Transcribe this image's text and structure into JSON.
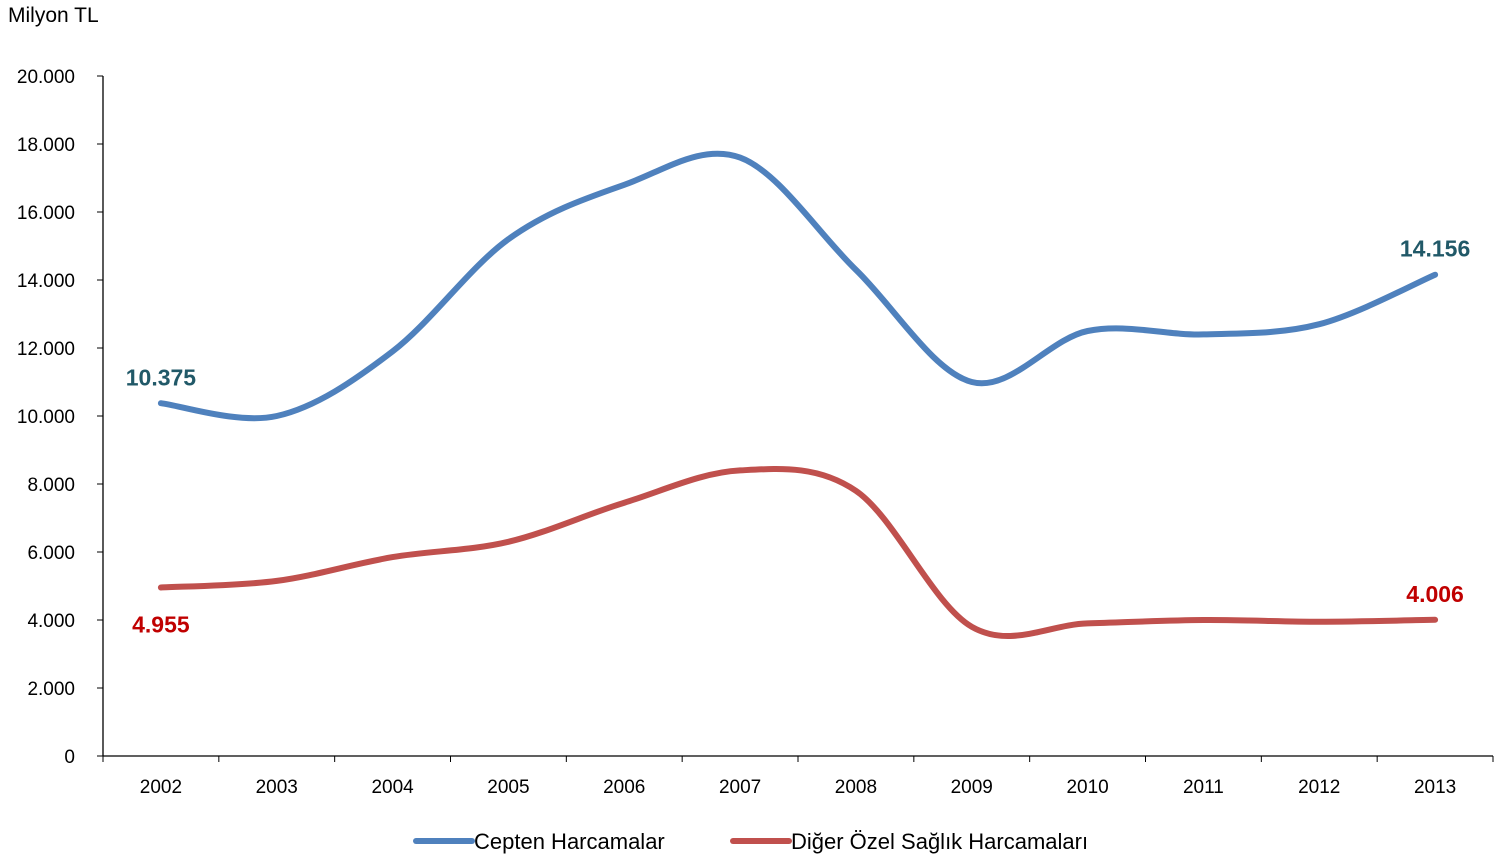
{
  "chart_data": {
    "type": "line",
    "title": "",
    "unit_label": "Milyon TL",
    "xlabel": "",
    "ylabel": "",
    "categories": [
      "2002",
      "2003",
      "2004",
      "2005",
      "2006",
      "2007",
      "2008",
      "2009",
      "2010",
      "2011",
      "2012",
      "2013"
    ],
    "ylim": [
      0,
      20000
    ],
    "yticks": [
      0,
      2000,
      4000,
      6000,
      8000,
      10000,
      12000,
      14000,
      16000,
      18000,
      20000
    ],
    "ytick_labels": [
      "0",
      "2.000",
      "4.000",
      "6.000",
      "8.000",
      "10.000",
      "12.000",
      "14.000",
      "16.000",
      "18.000",
      "20.000"
    ],
    "grid": false,
    "smooth": true,
    "legend_position": "bottom",
    "series": [
      {
        "name": "Cepten Harcamalar",
        "color": "#4F81BD",
        "label_color": "#215968",
        "values": [
          10375,
          10000,
          11900,
          15200,
          16800,
          17600,
          14300,
          11000,
          12500,
          12400,
          12700,
          14156
        ],
        "data_labels": [
          {
            "index": 0,
            "text": "10.375",
            "placement": "above"
          },
          {
            "index": 11,
            "text": "14.156",
            "placement": "above"
          }
        ]
      },
      {
        "name": "Diğer Özel Sağlık Harcamaları",
        "color": "#C0504D",
        "label_color": "#C00000",
        "values": [
          4955,
          5150,
          5850,
          6300,
          7450,
          8400,
          7800,
          3800,
          3900,
          4000,
          3950,
          4006
        ],
        "data_labels": [
          {
            "index": 0,
            "text": "4.955",
            "placement": "below"
          },
          {
            "index": 11,
            "text": "4.006",
            "placement": "above"
          }
        ]
      }
    ]
  }
}
